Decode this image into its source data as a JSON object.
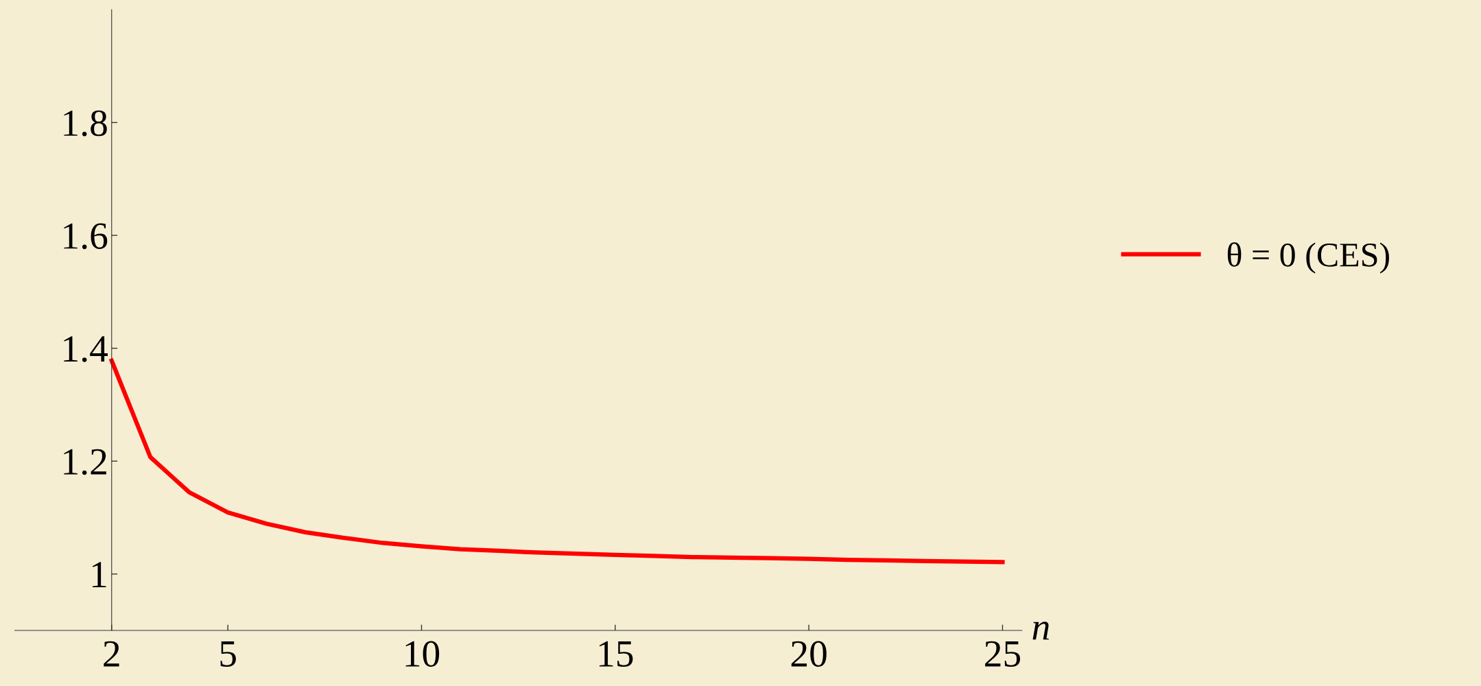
{
  "chart_data": {
    "type": "line",
    "xlabel": "n",
    "x": [
      2,
      3,
      4,
      5,
      6,
      7,
      8,
      9,
      10,
      11,
      12,
      13,
      14,
      15,
      16,
      17,
      18,
      19,
      20,
      21,
      22,
      23,
      24,
      25
    ],
    "series": [
      {
        "name": "θ = 0 (CES)",
        "color": "#ff0000",
        "values": [
          1.378,
          1.207,
          1.145,
          1.109,
          1.089,
          1.074,
          1.064,
          1.055,
          1.049,
          1.044,
          1.041,
          1.038,
          1.036,
          1.034,
          1.032,
          1.03,
          1.029,
          1.028,
          1.027,
          1.025,
          1.024,
          1.023,
          1.022,
          1.021
        ]
      }
    ],
    "xlim": [
      -0.5,
      25.5
    ],
    "ylim": [
      0.9,
      2.0
    ],
    "xticks": [
      2,
      5,
      10,
      15,
      20,
      25
    ],
    "yticks": [
      1,
      1.2,
      1.4,
      1.6,
      1.8
    ],
    "legend": "right"
  }
}
